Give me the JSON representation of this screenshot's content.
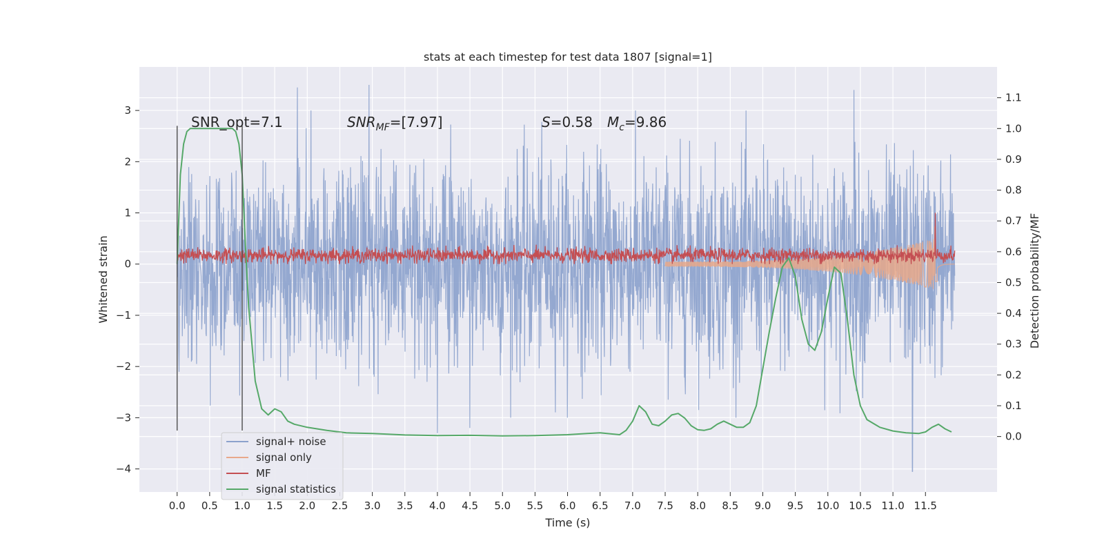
{
  "chart_data": {
    "type": "line",
    "title": "stats at each timestep for test data 1807 [signal=1]",
    "xlabel": "Time (s)",
    "ylabel": "Whitened strain",
    "ylabel_right": "Detection probability/MF",
    "xlim": [
      -0.58,
      12.6
    ],
    "ylim": [
      -4.45,
      3.85
    ],
    "ylim_right": [
      -0.18,
      1.2
    ],
    "x_ticks": [
      "0.0",
      "0.5",
      "1.0",
      "1.5",
      "2.0",
      "2.5",
      "3.0",
      "3.5",
      "4.0",
      "4.5",
      "5.0",
      "5.5",
      "6.0",
      "6.5",
      "7.0",
      "7.5",
      "8.0",
      "8.5",
      "9.0",
      "9.5",
      "10.0",
      "10.5",
      "11.0",
      "11.5"
    ],
    "y_ticks": [
      "3",
      "2",
      "1",
      "0",
      "−1",
      "−2",
      "−3",
      "−4"
    ],
    "y_ticks_right": [
      "1.1",
      "1.0",
      "0.9",
      "0.8",
      "0.7",
      "0.6",
      "0.5",
      "0.4",
      "0.3",
      "0.2",
      "0.1",
      "0.0"
    ],
    "grid": true,
    "legend_position": "lower-left",
    "annotations": {
      "snr_opt": "SNR_opt=7.1",
      "snr_mf_italic": "SNR",
      "snr_mf_sub": "MF",
      "snr_mf_value": "=[7.97]",
      "s_italic": "S",
      "s_value": "=0.58",
      "mc_italic": "M",
      "mc_sub": "c",
      "mc_value": "=9.86"
    },
    "vertical_markers": [
      0.0,
      1.0
    ],
    "series": [
      {
        "name": "signal+ noise",
        "color": "#8ba1cc",
        "axis": "left",
        "t_range": [
          0.0,
          11.95
        ],
        "envelope": [
          -2.5,
          2.5
        ],
        "notable_peaks": [
          [
            1.85,
            3.45
          ],
          [
            2.95,
            3.5
          ],
          [
            10.4,
            3.4
          ],
          [
            4.0,
            -3.3
          ],
          [
            4.5,
            -3.2
          ],
          [
            11.3,
            -4.05
          ]
        ]
      },
      {
        "name": "signal only",
        "color": "#e8a88a",
        "axis": "left",
        "t_range": [
          7.5,
          11.95
        ],
        "description_values": [
          [
            7.5,
            0.0
          ],
          [
            10.0,
            0.3
          ],
          [
            11.0,
            0.5
          ],
          [
            11.6,
            0.8
          ],
          [
            11.65,
            -0.8
          ],
          [
            11.7,
            0.3
          ]
        ]
      },
      {
        "name": "MF",
        "color": "#c44e52",
        "axis": "left",
        "t_range": [
          0.0,
          11.95
        ],
        "band": [
          0.0,
          0.35
        ],
        "peak": [
          11.65,
          1.0
        ]
      },
      {
        "name": "signal statistics",
        "color": "#55a868",
        "axis": "right",
        "x": [
          0.0,
          0.05,
          0.1,
          0.15,
          0.2,
          0.3,
          0.5,
          0.7,
          0.8,
          0.85,
          0.9,
          0.95,
          1.0,
          1.05,
          1.1,
          1.2,
          1.3,
          1.4,
          1.5,
          1.6,
          1.7,
          1.8,
          2.0,
          2.3,
          2.6,
          3.0,
          3.5,
          4.0,
          4.5,
          5.0,
          5.5,
          6.0,
          6.3,
          6.5,
          6.7,
          6.8,
          6.9,
          7.0,
          7.1,
          7.2,
          7.3,
          7.4,
          7.5,
          7.6,
          7.7,
          7.8,
          7.9,
          8.0,
          8.1,
          8.2,
          8.3,
          8.4,
          8.5,
          8.6,
          8.7,
          8.8,
          8.9,
          9.0,
          9.1,
          9.2,
          9.3,
          9.4,
          9.5,
          9.6,
          9.7,
          9.8,
          9.9,
          10.0,
          10.1,
          10.2,
          10.3,
          10.4,
          10.5,
          10.6,
          10.8,
          11.0,
          11.2,
          11.4,
          11.5,
          11.6,
          11.7,
          11.8,
          11.9
        ],
        "y": [
          0.56,
          0.85,
          0.95,
          0.99,
          1.0,
          1.0,
          1.0,
          1.0,
          1.0,
          1.0,
          0.99,
          0.95,
          0.85,
          0.62,
          0.42,
          0.18,
          0.09,
          0.07,
          0.09,
          0.08,
          0.05,
          0.04,
          0.03,
          0.02,
          0.012,
          0.01,
          0.005,
          0.003,
          0.004,
          0.002,
          0.003,
          0.006,
          0.01,
          0.012,
          0.008,
          0.006,
          0.02,
          0.05,
          0.1,
          0.08,
          0.04,
          0.035,
          0.05,
          0.07,
          0.075,
          0.06,
          0.035,
          0.022,
          0.02,
          0.025,
          0.04,
          0.05,
          0.04,
          0.03,
          0.03,
          0.045,
          0.1,
          0.22,
          0.34,
          0.45,
          0.55,
          0.58,
          0.52,
          0.38,
          0.3,
          0.28,
          0.34,
          0.45,
          0.55,
          0.53,
          0.38,
          0.2,
          0.1,
          0.055,
          0.03,
          0.018,
          0.012,
          0.01,
          0.015,
          0.03,
          0.04,
          0.025,
          0.015
        ]
      }
    ]
  }
}
